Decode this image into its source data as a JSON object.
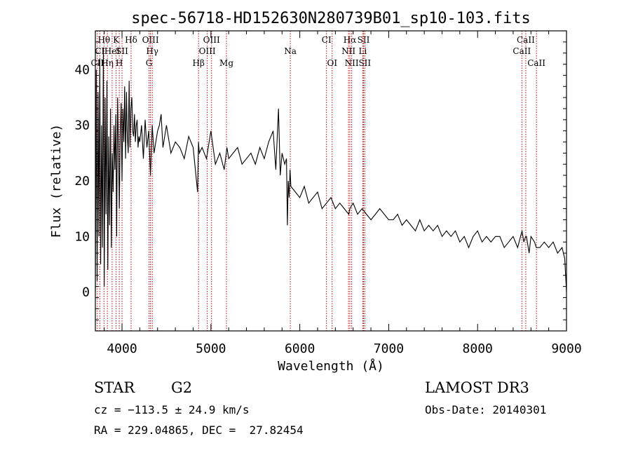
{
  "chart_data": {
    "type": "line",
    "title": "spec-56718-HD152630N280739B01_sp10-103.fits",
    "xlabel": "Wavelength (Å)",
    "ylabel": "Flux (relative)",
    "xlim": [
      3700,
      9000
    ],
    "ylim": [
      -7,
      47
    ],
    "xticks": [
      4000,
      5000,
      6000,
      7000,
      8000,
      9000
    ],
    "yticks": [
      0,
      10,
      20,
      30,
      40
    ],
    "series": [
      {
        "name": "flux",
        "x": [
          3700,
          3710,
          3720,
          3730,
          3740,
          3750,
          3760,
          3770,
          3780,
          3790,
          3800,
          3810,
          3820,
          3830,
          3840,
          3850,
          3860,
          3870,
          3880,
          3890,
          3900,
          3910,
          3920,
          3930,
          3940,
          3950,
          3960,
          3970,
          3980,
          3990,
          4000,
          4010,
          4020,
          4030,
          4040,
          4050,
          4060,
          4070,
          4080,
          4090,
          4100,
          4110,
          4120,
          4130,
          4140,
          4150,
          4160,
          4170,
          4180,
          4190,
          4200,
          4220,
          4240,
          4260,
          4280,
          4300,
          4320,
          4340,
          4360,
          4380,
          4400,
          4420,
          4440,
          4460,
          4480,
          4500,
          4550,
          4600,
          4650,
          4700,
          4750,
          4800,
          4850,
          4860,
          4870,
          4900,
          4950,
          5000,
          5050,
          5100,
          5150,
          5180,
          5200,
          5250,
          5300,
          5350,
          5400,
          5450,
          5500,
          5550,
          5600,
          5650,
          5700,
          5730,
          5760,
          5780,
          5800,
          5830,
          5850,
          5860,
          5870,
          5880,
          5890,
          5900,
          5950,
          6000,
          6050,
          6100,
          6150,
          6200,
          6250,
          6300,
          6350,
          6400,
          6450,
          6500,
          6550,
          6563,
          6600,
          6650,
          6700,
          6750,
          6800,
          6850,
          6900,
          6950,
          7000,
          7050,
          7100,
          7150,
          7200,
          7250,
          7300,
          7350,
          7400,
          7450,
          7500,
          7550,
          7600,
          7650,
          7700,
          7750,
          7800,
          7850,
          7900,
          7950,
          8000,
          8050,
          8100,
          8150,
          8200,
          8250,
          8300,
          8350,
          8400,
          8450,
          8500,
          8520,
          8540,
          8550,
          8580,
          8600,
          8640,
          8660,
          8700,
          8750,
          8800,
          8850,
          8900,
          8950,
          8980,
          9000
        ],
        "y": [
          0,
          40,
          2,
          36,
          10,
          42,
          5,
          30,
          8,
          44,
          1,
          35,
          14,
          38,
          4,
          28,
          12,
          33,
          8,
          25,
          18,
          30,
          22,
          32,
          10,
          35,
          26,
          15,
          29,
          34,
          20,
          33,
          27,
          37,
          24,
          36,
          28,
          25,
          38,
          26,
          33,
          35,
          29,
          28,
          32,
          27,
          30,
          31,
          26,
          28,
          27,
          30,
          24,
          31,
          26,
          29,
          21,
          30,
          25,
          27,
          29,
          30,
          32,
          26,
          28,
          30,
          25,
          27,
          26,
          24,
          28,
          26,
          18,
          27,
          25,
          26,
          24,
          29,
          23,
          25,
          22,
          26,
          24,
          25,
          26,
          23,
          24,
          25,
          23,
          26,
          24,
          27,
          29,
          22,
          33,
          21,
          25,
          23,
          24,
          12,
          20,
          17,
          22,
          19,
          18,
          17,
          19,
          16,
          17,
          18,
          15,
          16,
          17,
          15,
          16,
          15,
          14,
          15,
          16,
          14,
          15,
          14,
          13,
          14,
          15,
          14,
          13,
          13,
          14,
          12,
          13,
          12,
          11,
          13,
          11,
          12,
          11,
          12,
          10,
          11,
          10,
          11,
          9,
          10,
          8,
          10,
          11,
          9,
          10,
          9,
          10,
          10,
          8,
          9,
          10,
          8,
          11,
          9,
          10,
          10,
          7,
          10,
          9,
          8,
          8,
          9,
          8,
          9,
          7,
          8,
          6,
          0
        ]
      }
    ],
    "lines": [
      {
        "label": "CII",
        "x": 3722,
        "row": 3
      },
      {
        "label": "Hθ",
        "x": 3797,
        "row": 1
      },
      {
        "label": "CI",
        "x": 3750,
        "row": 2
      },
      {
        "label": "Hη",
        "x": 3835,
        "row": 3
      },
      {
        "label": "HeI",
        "x": 3889,
        "row": 2
      },
      {
        "label": "K",
        "x": 3934,
        "row": 1
      },
      {
        "label": "H",
        "x": 3969,
        "row": 3
      },
      {
        "label": "SII",
        "x": 4000,
        "row": 2
      },
      {
        "label": "Hδ",
        "x": 4102,
        "row": 1
      },
      {
        "label": "OIII",
        "x": 4320,
        "row": 1
      },
      {
        "label": "Hγ",
        "x": 4340,
        "row": 2
      },
      {
        "label": "G",
        "x": 4304,
        "row": 3
      },
      {
        "label": "Hβ",
        "x": 4861,
        "row": 3
      },
      {
        "label": "OIII",
        "x": 5007,
        "row": 1
      },
      {
        "label": "OIII",
        "x": 4959,
        "row": 2
      },
      {
        "label": "Mg",
        "x": 5175,
        "row": 3
      },
      {
        "label": "Na",
        "x": 5893,
        "row": 2
      },
      {
        "label": "CI",
        "x": 6300,
        "row": 1
      },
      {
        "label": "OI",
        "x": 6364,
        "row": 3
      },
      {
        "label": "Hα",
        "x": 6563,
        "row": 1
      },
      {
        "label": "NII",
        "x": 6548,
        "row": 2
      },
      {
        "label": "NII",
        "x": 6584,
        "row": 3
      },
      {
        "label": "SII",
        "x": 6717,
        "row": 1
      },
      {
        "label": "Li",
        "x": 6708,
        "row": 2
      },
      {
        "label": "SII",
        "x": 6731,
        "row": 3
      },
      {
        "label": "CaII",
        "x": 8542,
        "row": 1
      },
      {
        "label": "CaII",
        "x": 8498,
        "row": 2
      },
      {
        "label": "CaII",
        "x": 8662,
        "row": 3
      }
    ]
  },
  "info": {
    "object_class": "STAR",
    "subclass": "G2",
    "survey": "LAMOST DR3",
    "cz": "cz = −113.5 ± 24.9 km/s",
    "obs_date": "Obs-Date: 20140301",
    "coords": "RA = 229.04865, DEC =  27.82454"
  },
  "colors": {
    "line": "#000000",
    "marker": "#c00000",
    "background": "#ffffff"
  }
}
